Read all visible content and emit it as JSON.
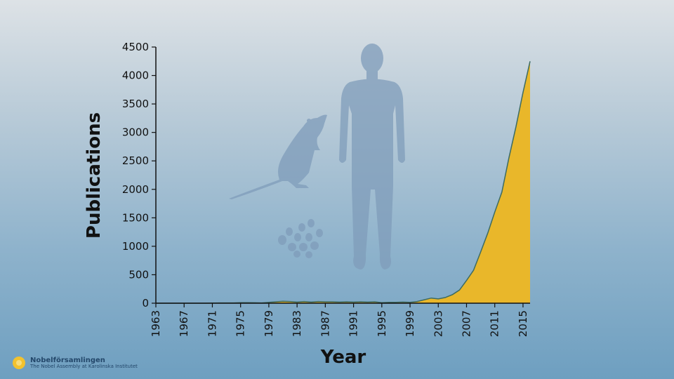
{
  "chart_data": {
    "type": "area",
    "xlabel": "Year",
    "ylabel": "Publications",
    "xlim": [
      1963,
      2016
    ],
    "ylim": [
      0,
      4500
    ],
    "yticks": [
      0,
      500,
      1000,
      1500,
      2000,
      2500,
      3000,
      3500,
      4000,
      4500
    ],
    "xticks": [
      1963,
      1967,
      1971,
      1975,
      1979,
      1983,
      1987,
      1991,
      1995,
      1999,
      2003,
      2007,
      2011,
      2015
    ],
    "grid": false,
    "fill_color": "#e9b72a",
    "line_color": "#3d6b62",
    "x": [
      1963,
      1970,
      1972,
      1974,
      1975,
      1976,
      1977,
      1978,
      1979,
      1980,
      1981,
      1982,
      1983,
      1984,
      1985,
      1986,
      1987,
      1988,
      1989,
      1990,
      1991,
      1992,
      1993,
      1994,
      1995,
      1996,
      1997,
      1998,
      1999,
      2000,
      2001,
      2002,
      2003,
      2004,
      2005,
      2006,
      2007,
      2008,
      2009,
      2010,
      2011,
      2012,
      2013,
      2014,
      2015,
      2016
    ],
    "y": [
      0,
      0,
      5,
      5,
      10,
      10,
      8,
      5,
      15,
      25,
      35,
      30,
      20,
      30,
      20,
      30,
      25,
      25,
      20,
      25,
      20,
      25,
      20,
      25,
      10,
      15,
      15,
      20,
      15,
      30,
      60,
      90,
      75,
      100,
      150,
      230,
      400,
      580,
      900,
      1230,
      1600,
      1950,
      2550,
      3100,
      3700,
      4250
    ]
  },
  "logo": {
    "name": "Nobelförsamlingen",
    "subtitle": "The Nobel Assembly at Karolinska Institutet"
  }
}
